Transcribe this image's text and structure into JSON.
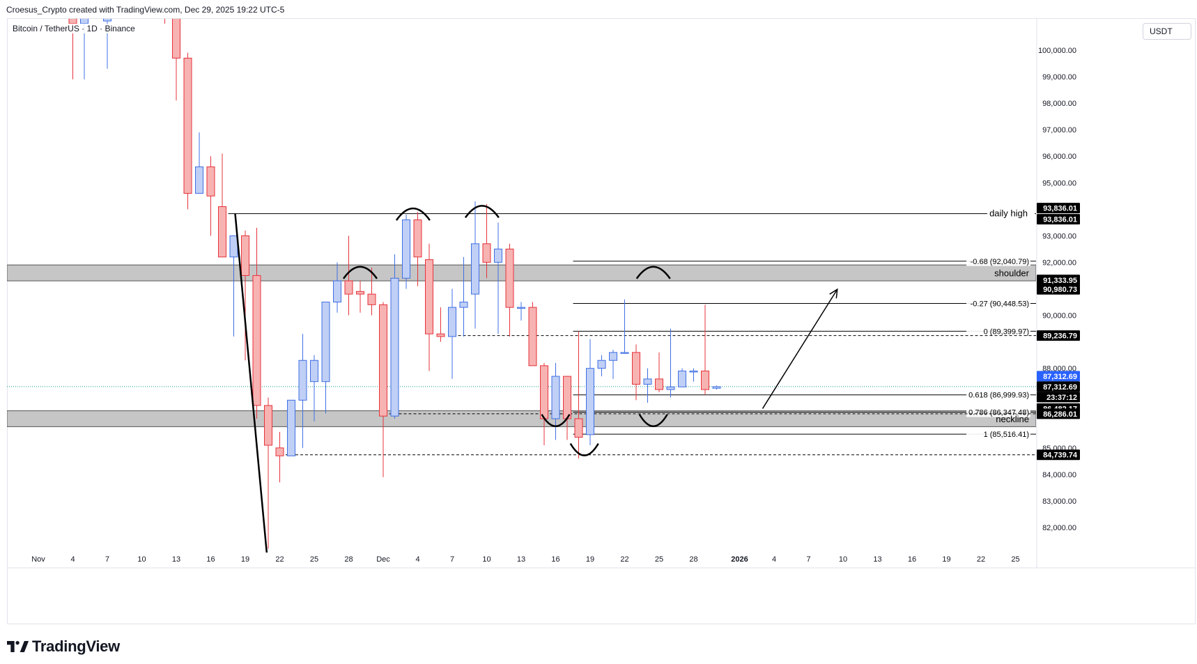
{
  "header": {
    "credit": "Croesus_Crypto created with TradingView.com, Dec 29, 2025 19:22 UTC-5"
  },
  "symbol": {
    "title": "Bitcoin / TetherUS · 1D · Binance"
  },
  "currency": "USDT",
  "brand": {
    "name": "TradingView",
    "logo_icon": "tradingview-logo-icon"
  },
  "colors": {
    "bull_body": "#bfcff5",
    "bull_border": "#3f6fe4",
    "bear_body": "#f7b2b2",
    "bear_border": "#e5333b",
    "zone": "#c6c6c6",
    "annotation": "#000000",
    "current_price": "#2962ff",
    "label_bg": "#000000"
  },
  "chart_data": {
    "type": "candlestick",
    "ylim": [
      81000,
      101500
    ],
    "y_ticks": [
      "100,000.00",
      "99,000.00",
      "98,000.00",
      "97,000.00",
      "96,000.00",
      "95,000.00",
      "93,000.00",
      "92,000.00",
      "90,000.00",
      "88,000.00",
      "85,000.00",
      "84,000.00",
      "83,000.00",
      "82,000.00"
    ],
    "x_ticks": [
      {
        "label": "Nov",
        "day": 0
      },
      {
        "label": "4",
        "day": 3
      },
      {
        "label": "7",
        "day": 6
      },
      {
        "label": "10",
        "day": 9
      },
      {
        "label": "13",
        "day": 12
      },
      {
        "label": "16",
        "day": 15
      },
      {
        "label": "19",
        "day": 18
      },
      {
        "label": "22",
        "day": 21
      },
      {
        "label": "25",
        "day": 24
      },
      {
        "label": "28",
        "day": 27
      },
      {
        "label": "Dec",
        "day": 30
      },
      {
        "label": "4",
        "day": 33
      },
      {
        "label": "7",
        "day": 36
      },
      {
        "label": "10",
        "day": 39
      },
      {
        "label": "13",
        "day": 42
      },
      {
        "label": "16",
        "day": 45
      },
      {
        "label": "19",
        "day": 48
      },
      {
        "label": "22",
        "day": 51
      },
      {
        "label": "25",
        "day": 54
      },
      {
        "label": "28",
        "day": 57
      },
      {
        "label": "2026",
        "day": 61,
        "bold": true
      },
      {
        "label": "4",
        "day": 64
      },
      {
        "label": "7",
        "day": 67
      },
      {
        "label": "10",
        "day": 70
      },
      {
        "label": "13",
        "day": 73
      },
      {
        "label": "16",
        "day": 76
      },
      {
        "label": "19",
        "day": 79
      },
      {
        "label": "22",
        "day": 82
      },
      {
        "label": "25",
        "day": 85
      }
    ],
    "candles": [
      {
        "day": 3,
        "o": 101300,
        "h": 101600,
        "l": 98900,
        "c": 101000
      },
      {
        "day": 4,
        "o": 101000,
        "h": 101600,
        "l": 98900,
        "c": 101400
      },
      {
        "day": 6,
        "o": 101100,
        "h": 101600,
        "l": 99300,
        "c": 101400
      },
      {
        "day": 11,
        "o": 101500,
        "h": 101600,
        "l": 101000,
        "c": 101300
      },
      {
        "day": 12,
        "o": 101600,
        "h": 101600,
        "l": 98100,
        "c": 99700
      },
      {
        "day": 13,
        "o": 99700,
        "h": 99900,
        "l": 94000,
        "c": 94600
      },
      {
        "day": 14,
        "o": 94600,
        "h": 96900,
        "l": 94600,
        "c": 95600
      },
      {
        "day": 15,
        "o": 95600,
        "h": 96000,
        "l": 93000,
        "c": 94500
      },
      {
        "day": 16,
        "o": 94100,
        "h": 96100,
        "l": 92200,
        "c": 92200
      },
      {
        "day": 17,
        "o": 92200,
        "h": 93000,
        "l": 89200,
        "c": 93000
      },
      {
        "day": 18,
        "o": 93000,
        "h": 93200,
        "l": 88300,
        "c": 91500
      },
      {
        "day": 19,
        "o": 91500,
        "h": 93300,
        "l": 86100,
        "c": 86600
      },
      {
        "day": 20,
        "o": 86600,
        "h": 86900,
        "l": 81200,
        "c": 85100
      },
      {
        "day": 21,
        "o": 85000,
        "h": 85600,
        "l": 83700,
        "c": 84700
      },
      {
        "day": 22,
        "o": 84700,
        "h": 86600,
        "l": 84700,
        "c": 86800
      },
      {
        "day": 23,
        "o": 86800,
        "h": 89300,
        "l": 85000,
        "c": 88300
      },
      {
        "day": 24,
        "o": 87500,
        "h": 88500,
        "l": 86000,
        "c": 88300
      },
      {
        "day": 25,
        "o": 87500,
        "h": 90500,
        "l": 86300,
        "c": 90500
      },
      {
        "day": 26,
        "o": 90500,
        "h": 92000,
        "l": 90100,
        "c": 91300
      },
      {
        "day": 27,
        "o": 91300,
        "h": 93000,
        "l": 90000,
        "c": 90800
      },
      {
        "day": 28,
        "o": 90900,
        "h": 91300,
        "l": 90100,
        "c": 90800
      },
      {
        "day": 29,
        "o": 90800,
        "h": 91800,
        "l": 90000,
        "c": 90400
      },
      {
        "day": 30,
        "o": 90400,
        "h": 90500,
        "l": 83900,
        "c": 86200
      },
      {
        "day": 31,
        "o": 86200,
        "h": 92300,
        "l": 86100,
        "c": 91400
      },
      {
        "day": 32,
        "o": 91400,
        "h": 93800,
        "l": 91000,
        "c": 93600
      },
      {
        "day": 33,
        "o": 93600,
        "h": 93900,
        "l": 91100,
        "c": 92200
      },
      {
        "day": 34,
        "o": 92100,
        "h": 92700,
        "l": 87900,
        "c": 89300
      },
      {
        "day": 35,
        "o": 89300,
        "h": 90300,
        "l": 89000,
        "c": 89200
      },
      {
        "day": 36,
        "o": 89200,
        "h": 91000,
        "l": 87600,
        "c": 90300
      },
      {
        "day": 37,
        "o": 90300,
        "h": 92200,
        "l": 89200,
        "c": 90500
      },
      {
        "day": 38,
        "o": 90800,
        "h": 94300,
        "l": 89500,
        "c": 92700
      },
      {
        "day": 39,
        "o": 92700,
        "h": 94200,
        "l": 91400,
        "c": 92000
      },
      {
        "day": 40,
        "o": 92000,
        "h": 93500,
        "l": 89300,
        "c": 92500
      },
      {
        "day": 41,
        "o": 92500,
        "h": 92700,
        "l": 89200,
        "c": 90300
      },
      {
        "day": 42,
        "o": 90300,
        "h": 90500,
        "l": 89800,
        "c": 90300
      },
      {
        "day": 43,
        "o": 90300,
        "h": 90500,
        "l": 88100,
        "c": 88100
      },
      {
        "day": 44,
        "o": 88100,
        "h": 88200,
        "l": 85100,
        "c": 86100
      },
      {
        "day": 45,
        "o": 86100,
        "h": 88200,
        "l": 85300,
        "c": 87700
      },
      {
        "day": 46,
        "o": 87700,
        "h": 87700,
        "l": 85300,
        "c": 86100
      },
      {
        "day": 47,
        "o": 86100,
        "h": 89400,
        "l": 84600,
        "c": 85400
      },
      {
        "day": 48,
        "o": 85500,
        "h": 89100,
        "l": 85100,
        "c": 88000
      },
      {
        "day": 49,
        "o": 88000,
        "h": 88500,
        "l": 87700,
        "c": 88300
      },
      {
        "day": 50,
        "o": 88300,
        "h": 88700,
        "l": 87600,
        "c": 88600
      },
      {
        "day": 51,
        "o": 88600,
        "h": 90600,
        "l": 88600,
        "c": 88600
      },
      {
        "day": 52,
        "o": 88600,
        "h": 88900,
        "l": 86800,
        "c": 87400
      },
      {
        "day": 53,
        "o": 87400,
        "h": 88000,
        "l": 86700,
        "c": 87600
      },
      {
        "day": 54,
        "o": 87600,
        "h": 88600,
        "l": 87100,
        "c": 87200
      },
      {
        "day": 55,
        "o": 87200,
        "h": 89500,
        "l": 86900,
        "c": 87300
      },
      {
        "day": 56,
        "o": 87300,
        "h": 88000,
        "l": 87300,
        "c": 87900
      },
      {
        "day": 57,
        "o": 87900,
        "h": 88000,
        "l": 87500,
        "c": 87900
      },
      {
        "day": 58,
        "o": 87900,
        "h": 90400,
        "l": 87000,
        "c": 87200
      },
      {
        "day": 59,
        "o": 87250,
        "h": 87350,
        "l": 87200,
        "c": 87310
      }
    ],
    "zones": [
      {
        "name": "shoulder",
        "from": 91333.95,
        "to": 90980.73,
        "y1": 91900,
        "y2": 91300,
        "label": "shoulder"
      },
      {
        "name": "neckline",
        "from": 86482.17,
        "to": 86286.01,
        "y1": 86400,
        "y2": 85800,
        "label": "neckline"
      }
    ],
    "levels": [
      {
        "name": "daily-high",
        "price": 93836.01,
        "style": "solid",
        "start_day": 17,
        "label": "daily high"
      },
      {
        "name": "fib-068",
        "price": 92040.79,
        "style": "solid",
        "start_day": 47,
        "label": "-0.68 (92,040.79)"
      },
      {
        "name": "fib-027",
        "price": 90448.53,
        "style": "solid",
        "start_day": 47,
        "label": "-0.27 (90,448.53)"
      },
      {
        "name": "fib-0",
        "price": 89399.97,
        "style": "solid",
        "start_day": 47,
        "label": "0 (89,399.97)"
      },
      {
        "name": "fib-0618",
        "price": 86999.93,
        "style": "solid",
        "start_day": 47,
        "label": "0.618 (86,999.93)"
      },
      {
        "name": "fib-0786",
        "price": 86347.48,
        "style": "solid",
        "start_day": 47,
        "label": "0.786 (86,347.48)"
      },
      {
        "name": "fib-1",
        "price": 85516.41,
        "style": "solid",
        "start_day": 47,
        "label": "1 (85,516.41)"
      },
      {
        "name": "dashed-89236",
        "price": 89236.79,
        "style": "dashed",
        "start_day": 37
      },
      {
        "name": "dashed-86286",
        "price": 86286.01,
        "style": "dashed",
        "start_day": 31
      },
      {
        "name": "dashed-84739",
        "price": 84739.74,
        "style": "dashed",
        "start_day": 22
      }
    ],
    "price_labels": [
      {
        "text": "93,836.01",
        "price": 93836.01,
        "offset": -8,
        "bg": "#000000"
      },
      {
        "text": "93,836.01",
        "price": 93836.01,
        "offset": 8,
        "bg": "#000000"
      },
      {
        "text": "91,333.95",
        "price": 91333.95,
        "offset": 0,
        "bg": "#000000"
      },
      {
        "text": "90,980.73",
        "price": 90980.73,
        "offset": 0,
        "bg": "#000000"
      },
      {
        "text": "89,236.79",
        "price": 89236.79,
        "offset": 0,
        "bg": "#000000"
      },
      {
        "text": "87,312.69",
        "price": 87312.69,
        "offset": -15,
        "bg": "#2962ff"
      },
      {
        "text": "87,312.69",
        "price": 87312.69,
        "offset": 0,
        "bg": "#000000"
      },
      {
        "text": "23:37:12",
        "price": 87312.69,
        "offset": 15,
        "bg": "#000000"
      },
      {
        "text": "86,482.17",
        "price": 86482.17,
        "offset": 0,
        "bg": "#000000"
      },
      {
        "text": "86,286.01",
        "price": 86286.01,
        "offset": 0,
        "bg": "#000000"
      },
      {
        "text": "84,739.74",
        "price": 84739.74,
        "offset": 0,
        "bg": "#000000"
      }
    ],
    "current_price": 87312.69,
    "trendline": {
      "from": {
        "day": 17,
        "price": 93836
      },
      "to": {
        "day": 20,
        "price": 81000
      }
    },
    "arrow": {
      "from": {
        "day": 63,
        "price": 86482
      },
      "to": {
        "day": 69.5,
        "price": 90980
      }
    },
    "arcs": [
      {
        "day": 28,
        "price": 91700,
        "dir": "up"
      },
      {
        "day": 32.6,
        "price": 93900,
        "dir": "up"
      },
      {
        "day": 38.6,
        "price": 94000,
        "dir": "up"
      },
      {
        "day": 53.5,
        "price": 91700,
        "dir": "up"
      },
      {
        "day": 45,
        "price": 86000,
        "dir": "down"
      },
      {
        "day": 47.5,
        "price": 84900,
        "dir": "down"
      },
      {
        "day": 53.5,
        "price": 86000,
        "dir": "down"
      }
    ]
  }
}
